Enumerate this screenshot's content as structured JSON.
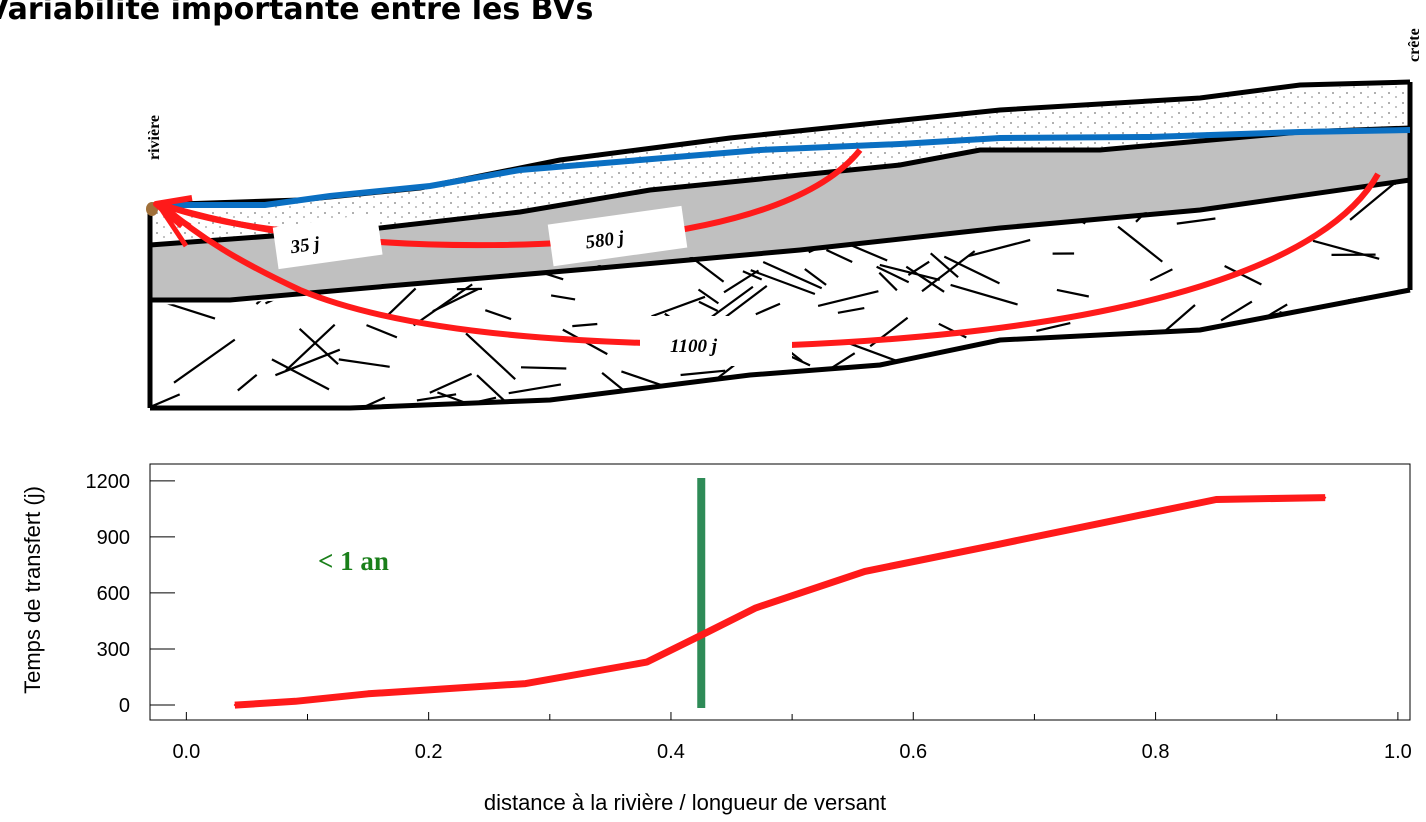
{
  "title": "Variabilité importante entre les BVs",
  "labels": {
    "riviere": "rivière",
    "crete": "crête"
  },
  "transfer_labels": [
    "35 j",
    "580 j",
    "1100 j"
  ],
  "colors": {
    "flow_arrow": "#ff1a1a",
    "water_table": "#0a6fc2",
    "threshold_line": "#2e8b57",
    "annotation": "#1a7f1a",
    "saturated_layer": "#c0c0c0"
  },
  "chart_data": {
    "type": "line",
    "xlabel": "distance à la rivière / longueur de versant",
    "ylabel": "Temps de transfert (j)",
    "xlim": [
      -0.03,
      1.01
    ],
    "ylim": [
      -80,
      1290
    ],
    "x_ticks": [
      "0.0",
      "0.2",
      "0.4",
      "0.6",
      "0.8",
      "1.0"
    ],
    "y_ticks": [
      "0",
      "300",
      "600",
      "900",
      "1200"
    ],
    "series": [
      {
        "color": "#ff1a1a",
        "x": [
          0.04,
          0.09,
          0.15,
          0.28,
          0.38,
          0.43,
          0.47,
          0.56,
          0.67,
          0.76,
          0.85,
          0.94
        ],
        "y": [
          0,
          20,
          60,
          115,
          230,
          390,
          520,
          715,
          860,
          980,
          1100,
          1110
        ]
      }
    ],
    "threshold": {
      "x": 0.425,
      "color": "#2e8b57"
    },
    "annotation": "< 1 an"
  }
}
